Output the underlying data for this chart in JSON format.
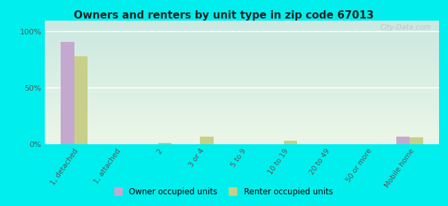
{
  "title": "Owners and renters by unit type in zip code 67013",
  "categories": [
    "1, detached",
    "1, attached",
    "2",
    "3 or 4",
    "5 to 9",
    "10 to 19",
    "20 to 49",
    "50 or more",
    "Mobile home"
  ],
  "owner_values": [
    91,
    0.3,
    0,
    0,
    0.3,
    0,
    0,
    0,
    7
  ],
  "renter_values": [
    78,
    0.3,
    1.5,
    7,
    0.3,
    3,
    0,
    0,
    6
  ],
  "owner_color": "#c5a8d0",
  "renter_color": "#c8cf88",
  "background_color": "#00eeee",
  "plot_bg_gradient_start": "#d8efe8",
  "plot_bg_gradient_end": "#f0f8ec",
  "yticks": [
    0,
    50,
    100
  ],
  "ylabels": [
    "0%",
    "50%",
    "100%"
  ],
  "bar_width": 0.32,
  "watermark": "City-Data.com"
}
